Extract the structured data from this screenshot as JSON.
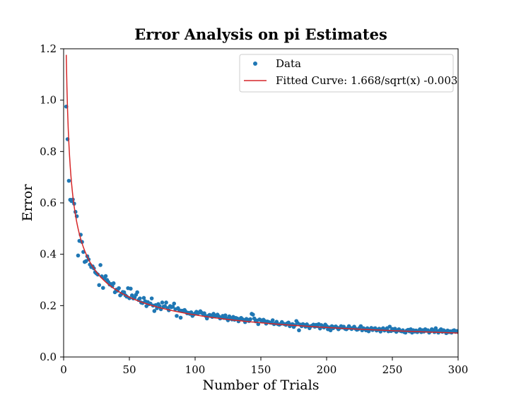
{
  "chart_data": {
    "type": "scatter",
    "title": "Error Analysis on pi Estimates",
    "xlabel": "Number of Trials",
    "ylabel": "Error",
    "xlim": [
      0,
      300
    ],
    "ylim": [
      0.0,
      1.2
    ],
    "xticks": [
      0,
      50,
      100,
      150,
      200,
      250,
      300
    ],
    "xtick_labels": [
      "0",
      "50",
      "100",
      "150",
      "200",
      "250",
      "300"
    ],
    "yticks": [
      0.0,
      0.2,
      0.4,
      0.6,
      0.8,
      1.0,
      1.2
    ],
    "ytick_labels": [
      "0.0",
      "0.2",
      "0.4",
      "0.6",
      "0.8",
      "1.0",
      "1.2"
    ],
    "grid": false,
    "legend_position": "top-right",
    "series": [
      {
        "name": "Data",
        "kind": "scatter",
        "color": "#1f77b4",
        "points": [
          [
            2,
            0.975
          ],
          [
            3,
            0.848
          ],
          [
            4,
            0.686
          ],
          [
            5,
            0.612
          ],
          [
            6,
            0.607
          ],
          [
            7,
            0.613
          ],
          [
            8,
            0.597
          ],
          [
            9,
            0.565
          ],
          [
            10,
            0.548
          ],
          [
            11,
            0.395
          ],
          [
            12,
            0.452
          ],
          [
            13,
            0.476
          ],
          [
            14,
            0.448
          ],
          [
            15,
            0.409
          ],
          [
            16,
            0.37
          ],
          [
            17,
            0.373
          ],
          [
            18,
            0.392
          ],
          [
            19,
            0.38
          ],
          [
            20,
            0.36
          ],
          [
            21,
            0.35
          ],
          [
            22,
            0.353
          ],
          [
            23,
            0.345
          ],
          [
            24,
            0.33
          ],
          [
            25,
            0.325
          ],
          [
            26,
            0.321
          ],
          [
            27,
            0.28
          ],
          [
            28,
            0.358
          ],
          [
            29,
            0.314
          ],
          [
            30,
            0.269
          ],
          [
            31,
            0.305
          ],
          [
            32,
            0.315
          ],
          [
            33,
            0.3
          ],
          [
            34,
            0.292
          ],
          [
            35,
            0.282
          ],
          [
            36,
            0.284
          ],
          [
            37,
            0.276
          ],
          [
            38,
            0.287
          ],
          [
            39,
            0.252
          ],
          [
            40,
            0.262
          ],
          [
            41,
            0.258
          ],
          [
            42,
            0.268
          ],
          [
            43,
            0.24
          ],
          [
            44,
            0.246
          ],
          [
            45,
            0.253
          ],
          [
            46,
            0.252
          ],
          [
            47,
            0.24
          ],
          [
            48,
            0.235
          ],
          [
            49,
            0.268
          ],
          [
            50,
            0.229
          ],
          [
            51,
            0.266
          ],
          [
            52,
            0.24
          ],
          [
            53,
            0.228
          ],
          [
            54,
            0.231
          ],
          [
            55,
            0.242
          ],
          [
            56,
            0.252
          ],
          [
            57,
            0.222
          ],
          [
            58,
            0.228
          ],
          [
            59,
            0.212
          ],
          [
            60,
            0.21
          ],
          [
            61,
            0.23
          ],
          [
            62,
            0.217
          ],
          [
            63,
            0.198
          ],
          [
            64,
            0.214
          ],
          [
            65,
            0.206
          ],
          [
            66,
            0.208
          ],
          [
            67,
            0.228
          ],
          [
            68,
            0.2
          ],
          [
            69,
            0.179
          ],
          [
            70,
            0.202
          ],
          [
            71,
            0.19
          ],
          [
            72,
            0.206
          ],
          [
            73,
            0.198
          ],
          [
            74,
            0.186
          ],
          [
            75,
            0.212
          ],
          [
            76,
            0.196
          ],
          [
            77,
            0.198
          ],
          [
            78,
            0.212
          ],
          [
            79,
            0.19
          ],
          [
            80,
            0.182
          ],
          [
            81,
            0.198
          ],
          [
            82,
            0.194
          ],
          [
            83,
            0.196
          ],
          [
            84,
            0.208
          ],
          [
            85,
            0.186
          ],
          [
            86,
            0.16
          ],
          [
            87,
            0.19
          ],
          [
            88,
            0.182
          ],
          [
            89,
            0.153
          ],
          [
            90,
            0.18
          ],
          [
            91,
            0.178
          ],
          [
            92,
            0.183
          ],
          [
            93,
            0.176
          ],
          [
            94,
            0.17
          ],
          [
            95,
            0.172
          ],
          [
            96,
            0.168
          ],
          [
            97,
            0.174
          ],
          [
            98,
            0.16
          ],
          [
            99,
            0.166
          ],
          [
            100,
            0.17
          ],
          [
            101,
            0.176
          ],
          [
            102,
            0.17
          ],
          [
            103,
            0.173
          ],
          [
            104,
            0.178
          ],
          [
            105,
            0.172
          ],
          [
            106,
            0.168
          ],
          [
            107,
            0.17
          ],
          [
            108,
            0.16
          ],
          [
            109,
            0.15
          ],
          [
            110,
            0.16
          ],
          [
            111,
            0.164
          ],
          [
            112,
            0.162
          ],
          [
            113,
            0.156
          ],
          [
            114,
            0.168
          ],
          [
            115,
            0.158
          ],
          [
            116,
            0.161
          ],
          [
            117,
            0.165
          ],
          [
            118,
            0.158
          ],
          [
            119,
            0.15
          ],
          [
            120,
            0.153
          ],
          [
            121,
            0.16
          ],
          [
            122,
            0.152
          ],
          [
            123,
            0.162
          ],
          [
            124,
            0.15
          ],
          [
            125,
            0.143
          ],
          [
            126,
            0.158
          ],
          [
            127,
            0.152
          ],
          [
            128,
            0.146
          ],
          [
            129,
            0.156
          ],
          [
            130,
            0.145
          ],
          [
            131,
            0.152
          ],
          [
            132,
            0.15
          ],
          [
            133,
            0.139
          ],
          [
            134,
            0.148
          ],
          [
            135,
            0.152
          ],
          [
            136,
            0.147
          ],
          [
            137,
            0.144
          ],
          [
            138,
            0.136
          ],
          [
            139,
            0.148
          ],
          [
            140,
            0.145
          ],
          [
            141,
            0.14
          ],
          [
            142,
            0.147
          ],
          [
            143,
            0.168
          ],
          [
            144,
            0.165
          ],
          [
            145,
            0.15
          ],
          [
            146,
            0.139
          ],
          [
            147,
            0.142
          ],
          [
            148,
            0.128
          ],
          [
            149,
            0.146
          ],
          [
            150,
            0.143
          ],
          [
            151,
            0.138
          ],
          [
            152,
            0.145
          ],
          [
            153,
            0.14
          ],
          [
            154,
            0.13
          ],
          [
            155,
            0.138
          ],
          [
            156,
            0.136
          ],
          [
            157,
            0.134
          ],
          [
            158,
            0.133
          ],
          [
            159,
            0.143
          ],
          [
            160,
            0.128
          ],
          [
            161,
            0.131
          ],
          [
            162,
            0.137
          ],
          [
            163,
            0.128
          ],
          [
            164,
            0.126
          ],
          [
            165,
            0.129
          ],
          [
            166,
            0.136
          ],
          [
            167,
            0.13
          ],
          [
            168,
            0.128
          ],
          [
            169,
            0.125
          ],
          [
            170,
            0.131
          ],
          [
            171,
            0.134
          ],
          [
            172,
            0.12
          ],
          [
            173,
            0.126
          ],
          [
            174,
            0.128
          ],
          [
            175,
            0.117
          ],
          [
            176,
            0.124
          ],
          [
            177,
            0.14
          ],
          [
            178,
            0.132
          ],
          [
            179,
            0.104
          ],
          [
            180,
            0.126
          ],
          [
            181,
            0.12
          ],
          [
            182,
            0.128
          ],
          [
            183,
            0.125
          ],
          [
            184,
            0.118
          ],
          [
            185,
            0.127
          ],
          [
            186,
            0.12
          ],
          [
            187,
            0.112
          ],
          [
            188,
            0.12
          ],
          [
            189,
            0.122
          ],
          [
            190,
            0.126
          ],
          [
            191,
            0.118
          ],
          [
            192,
            0.125
          ],
          [
            193,
            0.12
          ],
          [
            194,
            0.128
          ],
          [
            195,
            0.111
          ],
          [
            196,
            0.124
          ],
          [
            197,
            0.119
          ],
          [
            198,
            0.115
          ],
          [
            199,
            0.126
          ],
          [
            200,
            0.12
          ],
          [
            201,
            0.108
          ],
          [
            202,
            0.115
          ],
          [
            203,
            0.104
          ],
          [
            204,
            0.12
          ],
          [
            205,
            0.112
          ],
          [
            206,
            0.117
          ],
          [
            207,
            0.119
          ],
          [
            208,
            0.114
          ],
          [
            209,
            0.108
          ],
          [
            210,
            0.113
          ],
          [
            211,
            0.12
          ],
          [
            212,
            0.115
          ],
          [
            213,
            0.118
          ],
          [
            214,
            0.11
          ],
          [
            215,
            0.108
          ],
          [
            216,
            0.112
          ],
          [
            217,
            0.12
          ],
          [
            218,
            0.113
          ],
          [
            219,
            0.109
          ],
          [
            220,
            0.113
          ],
          [
            221,
            0.118
          ],
          [
            222,
            0.11
          ],
          [
            223,
            0.106
          ],
          [
            224,
            0.108
          ],
          [
            225,
            0.113
          ],
          [
            226,
            0.12
          ],
          [
            227,
            0.104
          ],
          [
            228,
            0.112
          ],
          [
            229,
            0.109
          ],
          [
            230,
            0.104
          ],
          [
            231,
            0.112
          ],
          [
            232,
            0.1
          ],
          [
            233,
            0.108
          ],
          [
            234,
            0.113
          ],
          [
            235,
            0.105
          ],
          [
            236,
            0.11
          ],
          [
            237,
            0.112
          ],
          [
            238,
            0.103
          ],
          [
            239,
            0.106
          ],
          [
            240,
            0.11
          ],
          [
            241,
            0.099
          ],
          [
            242,
            0.108
          ],
          [
            243,
            0.112
          ],
          [
            244,
            0.103
          ],
          [
            245,
            0.107
          ],
          [
            246,
            0.112
          ],
          [
            247,
            0.1
          ],
          [
            248,
            0.118
          ],
          [
            249,
            0.101
          ],
          [
            250,
            0.109
          ],
          [
            251,
            0.104
          ],
          [
            252,
            0.11
          ],
          [
            253,
            0.098
          ],
          [
            254,
            0.103
          ],
          [
            255,
            0.108
          ],
          [
            256,
            0.102
          ],
          [
            257,
            0.1
          ],
          [
            258,
            0.104
          ],
          [
            259,
            0.097
          ],
          [
            260,
            0.095
          ],
          [
            261,
            0.103
          ],
          [
            262,
            0.106
          ],
          [
            263,
            0.1
          ],
          [
            264,
            0.108
          ],
          [
            265,
            0.095
          ],
          [
            266,
            0.104
          ],
          [
            267,
            0.099
          ],
          [
            268,
            0.103
          ],
          [
            269,
            0.097
          ],
          [
            270,
            0.102
          ],
          [
            271,
            0.108
          ],
          [
            272,
            0.097
          ],
          [
            273,
            0.104
          ],
          [
            274,
            0.099
          ],
          [
            275,
            0.108
          ],
          [
            276,
            0.102
          ],
          [
            277,
            0.104
          ],
          [
            278,
            0.095
          ],
          [
            279,
            0.1
          ],
          [
            280,
            0.108
          ],
          [
            281,
            0.104
          ],
          [
            282,
            0.097
          ],
          [
            283,
            0.112
          ],
          [
            284,
            0.101
          ],
          [
            285,
            0.095
          ],
          [
            286,
            0.103
          ],
          [
            287,
            0.108
          ],
          [
            288,
            0.098
          ],
          [
            289,
            0.104
          ],
          [
            290,
            0.1
          ],
          [
            291,
            0.093
          ],
          [
            292,
            0.103
          ],
          [
            293,
            0.097
          ],
          [
            294,
            0.1
          ],
          [
            295,
            0.095
          ],
          [
            296,
            0.102
          ],
          [
            297,
            0.104
          ],
          [
            298,
            0.098
          ],
          [
            299,
            0.101
          ],
          [
            300,
            0.097
          ]
        ]
      },
      {
        "name": "Fitted Curve: 1.668/sqrt(x) -0.003",
        "kind": "line",
        "color": "#d62728",
        "formula": {
          "a": 1.668,
          "b": -0.003
        },
        "x_start": 2,
        "x_end": 300
      }
    ]
  }
}
